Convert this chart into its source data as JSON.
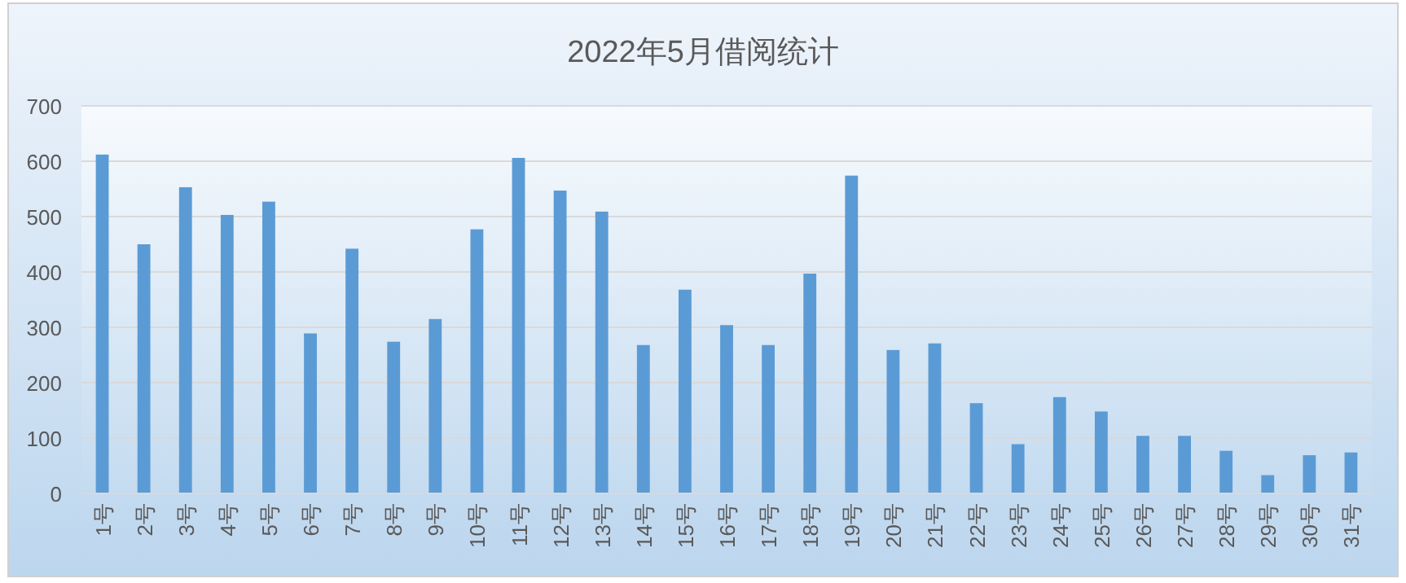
{
  "chart_data": {
    "type": "bar",
    "title": "2022年5月借阅统计",
    "categories": [
      "1号",
      "2号",
      "3号",
      "4号",
      "5号",
      "6号",
      "7号",
      "8号",
      "9号",
      "10号",
      "11号",
      "12号",
      "13号",
      "14号",
      "15号",
      "16号",
      "17号",
      "18号",
      "19号",
      "20号",
      "21号",
      "22号",
      "23号",
      "24号",
      "25号",
      "26号",
      "27号",
      "28号",
      "29号",
      "30号",
      "31号"
    ],
    "values": [
      612,
      450,
      553,
      503,
      527,
      289,
      442,
      274,
      315,
      477,
      606,
      547,
      509,
      268,
      368,
      304,
      268,
      397,
      574,
      259,
      271,
      163,
      89,
      174,
      148,
      104,
      104,
      77,
      33,
      69,
      74
    ],
    "color": "#5b9bd5",
    "ylim": [
      0,
      700
    ],
    "yticks": [
      0,
      100,
      200,
      300,
      400,
      500,
      600,
      700
    ],
    "grid": "y"
  }
}
